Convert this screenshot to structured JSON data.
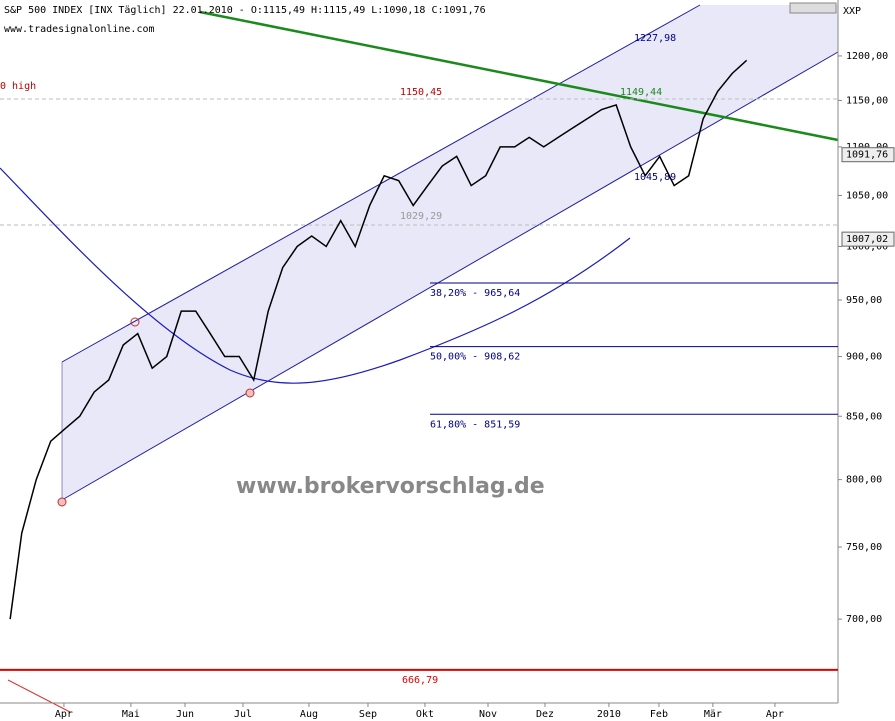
{
  "chart_data": {
    "type": "line",
    "title": "S&P 500 INDEX [INX Täglich] 22.01.2010 - O:1115,49 H:1115,49 L:1090,18 C:1091,76",
    "subtitle": "www.tradesignalonline.com",
    "watermark": "www.brokervorschlag.de",
    "symbol": "XXP",
    "left_label": "0 high",
    "log_scale": true,
    "series": [
      {
        "name": "S&P 500",
        "color": "#000000",
        "x": [
          0.7,
          1.5,
          2.5,
          3.5,
          4.5,
          5.5,
          6.5,
          7.5,
          8.5,
          9.5,
          10.5,
          11.5,
          12.5,
          13.5,
          14.5,
          15.5,
          16.5,
          17.5,
          18.5,
          19.5,
          20.5,
          21.5,
          22.5,
          23.5,
          24.5,
          25.5,
          26.5,
          27.5,
          28.5,
          29.5,
          30.5,
          31.5,
          32.5,
          33.5,
          34.5,
          35.5,
          36.5,
          37.5,
          38.5,
          39.5,
          40.5,
          41.5,
          42.5,
          43.5,
          44.5,
          45.5,
          46.5,
          47.5,
          48.5,
          49.5,
          50.5,
          51.5
        ],
        "values": [
          700,
          760,
          800,
          830,
          840,
          850,
          870,
          880,
          910,
          920,
          890,
          900,
          940,
          940,
          920,
          900,
          900,
          880,
          940,
          980,
          1000,
          1010,
          1000,
          1025,
          1000,
          1040,
          1070,
          1065,
          1040,
          1060,
          1080,
          1090,
          1060,
          1070,
          1100,
          1100,
          1110,
          1100,
          1110,
          1120,
          1130,
          1140,
          1145,
          1100,
          1070,
          1090,
          1060,
          1070,
          1130,
          1160,
          1180,
          1195
        ]
      }
    ],
    "xlim": [
      0,
      57.8
    ],
    "xticks": [
      {
        "value": 4.41,
        "label": "Apr"
      },
      {
        "value": 9.03,
        "label": "Mai"
      },
      {
        "value": 12.76,
        "label": "Jun"
      },
      {
        "value": 16.76,
        "label": "Jul"
      },
      {
        "value": 21.31,
        "label": "Aug"
      },
      {
        "value": 25.38,
        "label": "Sep"
      },
      {
        "value": 29.31,
        "label": "Okt"
      },
      {
        "value": 33.66,
        "label": "Nov"
      },
      {
        "value": 37.59,
        "label": "Dez"
      },
      {
        "value": 42.0,
        "label": "2010"
      },
      {
        "value": 45.45,
        "label": "Feb"
      },
      {
        "value": 49.17,
        "label": "Mär"
      },
      {
        "value": 53.45,
        "label": "Apr"
      }
    ],
    "ylim": [
      646,
      1266
    ],
    "yticks": [
      {
        "value": 700,
        "label": "700,00"
      },
      {
        "value": 750,
        "label": "750,00"
      },
      {
        "value": 800,
        "label": "800,00"
      },
      {
        "value": 850,
        "label": "850,00"
      },
      {
        "value": 900,
        "label": "900,00"
      },
      {
        "value": 950,
        "label": "950,00"
      },
      {
        "value": 1000,
        "label": "1000,00"
      },
      {
        "value": 1050,
        "label": "1050,00"
      },
      {
        "value": 1100,
        "label": "1100,00"
      },
      {
        "value": 1150,
        "label": "1150,00"
      },
      {
        "value": 1200,
        "label": "1200,00"
      }
    ],
    "levels": [
      {
        "value": 965.64,
        "label": "38,20% - 965,64",
        "color": "#00008b"
      },
      {
        "value": 908.62,
        "label": "50,00% - 908,62",
        "color": "#00008b"
      },
      {
        "value": 851.59,
        "label": "61,80% - 851,59",
        "color": "#00008b"
      },
      {
        "value": 666.79,
        "label": "666,79",
        "color": "#e00000"
      }
    ],
    "price_boxes": [
      {
        "value": 1091.76,
        "label": "1091,76"
      },
      {
        "value": 1007.02,
        "label": "1007,02"
      }
    ],
    "annotations": [
      "1227,98",
      "1150,45",
      "1149,44",
      "1045,89",
      "1029,29"
    ]
  }
}
